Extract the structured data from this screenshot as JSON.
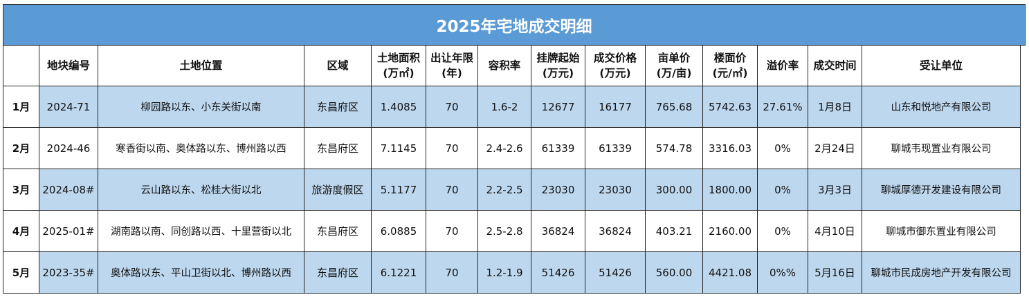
{
  "title": "2025年宅地成交明细",
  "headers": [
    {
      "line1": "",
      "line2": ""
    },
    {
      "line1": "地块编号",
      "line2": ""
    },
    {
      "line1": "土地位置",
      "line2": ""
    },
    {
      "line1": "区域",
      "line2": ""
    },
    {
      "line1": "土地面积",
      "line2": "(万㎡)"
    },
    {
      "line1": "出让年限",
      "line2": "(年)"
    },
    {
      "line1": "容积率",
      "line2": ""
    },
    {
      "line1": "挂牌起始",
      "line2": "(万元)"
    },
    {
      "line1": "成交价格",
      "line2": "(万元)"
    },
    {
      "line1": "亩单价",
      "line2": "(万/亩)"
    },
    {
      "line1": "楼面价",
      "line2": "(元/㎡)"
    },
    {
      "line1": "溢价率",
      "line2": ""
    },
    {
      "line1": "成交时间",
      "line2": ""
    },
    {
      "line1": "受让单位",
      "line2": ""
    }
  ],
  "rows": [
    {
      "month": "1月",
      "plot": "2024-71",
      "location": "柳园路以东、小东关街以南",
      "district": "东昌府区",
      "area": "1.4085",
      "term": "70",
      "far": "1.6-2",
      "start": "12677",
      "price": "16177",
      "mu_price": "765.68",
      "floor_price": "5742.63",
      "premium": "27.61%",
      "date": "1月8日",
      "buyer": "山东和悦地产有限公司"
    },
    {
      "month": "2月",
      "plot": "2024-46",
      "location": "寒香街以南、奥体路以东、博州路以西",
      "district": "东昌府区",
      "area": "7.1145",
      "term": "70",
      "far": "2.4-2.6",
      "start": "61339",
      "price": "61339",
      "mu_price": "574.78",
      "floor_price": "3316.03",
      "premium": "0%",
      "date": "2月24日",
      "buyer": "聊城韦现置业有限公司"
    },
    {
      "month": "3月",
      "plot": "2024-08#",
      "location": "云山路以东、松桂大街以北",
      "district": "旅游度假区",
      "area": "5.1177",
      "term": "70",
      "far": "2.2-2.5",
      "start": "23030",
      "price": "23030",
      "mu_price": "300.00",
      "floor_price": "1800.00",
      "premium": "0%",
      "date": "3月3日",
      "buyer": "聊城厚德开发建设有限公司"
    },
    {
      "month": "4月",
      "plot": "2025-01#",
      "location": "湖南路以南、同创路以西、十里营街以北",
      "district": "东昌府区",
      "area": "6.0885",
      "term": "70",
      "far": "2.5-2.8",
      "start": "36824",
      "price": "36824",
      "mu_price": "403.21",
      "floor_price": "2160.00",
      "premium": "0%",
      "date": "4月10日",
      "buyer": "聊城市御东置业有限公司"
    },
    {
      "month": "5月",
      "plot": "2023-35#",
      "location": "奥体路以东、平山卫街以北、博州路以西",
      "district": "东昌府区",
      "area": "6.1221",
      "term": "70",
      "far": "1.2-1.9",
      "start": "51426",
      "price": "51426",
      "mu_price": "560.00",
      "floor_price": "4421.08",
      "premium": "0%%",
      "date": "5月16日",
      "buyer": "聊城市民成房地产开发有限公司"
    }
  ]
}
